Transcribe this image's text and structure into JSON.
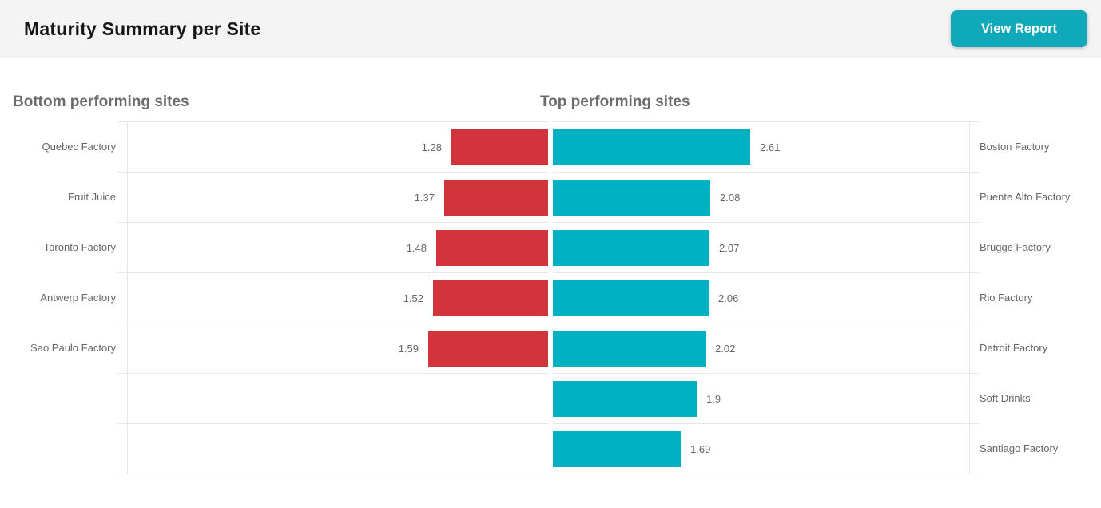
{
  "header": {
    "title": "Maturity Summary per Site",
    "button_label": "View Report"
  },
  "colors": {
    "header_bg": "#f4f4f4",
    "button_teal": "#0fa9ba",
    "bar_red": "#d2343c",
    "bar_teal": "#00b1c3"
  },
  "charts": {
    "left": {
      "heading": "Bottom performing sites",
      "rows": [
        {
          "label": "Quebec Factory",
          "value": 1.28,
          "display": "1.28"
        },
        {
          "label": "Fruit Juice",
          "value": 1.37,
          "display": "1.37"
        },
        {
          "label": "Toronto Factory",
          "value": 1.48,
          "display": "1.48"
        },
        {
          "label": "Antwerp Factory",
          "value": 1.52,
          "display": "1.52"
        },
        {
          "label": "Sao Paulo Factory",
          "value": 1.59,
          "display": "1.59"
        },
        {
          "label": "",
          "value": null,
          "display": ""
        },
        {
          "label": "",
          "value": null,
          "display": ""
        }
      ]
    },
    "right": {
      "heading": "Top performing sites",
      "rows": [
        {
          "label": "Boston Factory",
          "value": 2.61,
          "display": "2.61"
        },
        {
          "label": "Puente Alto Factory",
          "value": 2.08,
          "display": "2.08"
        },
        {
          "label": "Brugge Factory",
          "value": 2.07,
          "display": "2.07"
        },
        {
          "label": "Rio Factory",
          "value": 2.06,
          "display": "2.06"
        },
        {
          "label": "Detroit Factory",
          "value": 2.02,
          "display": "2.02"
        },
        {
          "label": "Soft Drinks",
          "value": 1.9,
          "display": "1.9"
        },
        {
          "label": "Santiago Factory",
          "value": 1.69,
          "display": "1.69"
        }
      ]
    }
  },
  "chart_data": [
    {
      "type": "bar",
      "title": "Bottom performing sites",
      "orientation": "horizontal",
      "direction": "right-to-left",
      "categories": [
        "Quebec Factory",
        "Fruit Juice",
        "Toronto Factory",
        "Antwerp Factory",
        "Sao Paulo Factory"
      ],
      "values": [
        1.28,
        1.37,
        1.48,
        1.52,
        1.59
      ],
      "bar_color": "#d2343c",
      "value_labels_shown": true,
      "value_axis_hidden": true,
      "grid": "row-separators",
      "legend": "none"
    },
    {
      "type": "bar",
      "title": "Top performing sites",
      "orientation": "horizontal",
      "direction": "left-to-right",
      "categories": [
        "Boston Factory",
        "Puente Alto Factory",
        "Brugge Factory",
        "Rio Factory",
        "Detroit Factory",
        "Soft Drinks",
        "Santiago Factory"
      ],
      "values": [
        2.61,
        2.08,
        2.07,
        2.06,
        2.02,
        1.9,
        1.69
      ],
      "bar_color": "#00b1c3",
      "value_labels_shown": true,
      "value_axis_hidden": true,
      "grid": "row-separators",
      "legend": "none"
    }
  ]
}
